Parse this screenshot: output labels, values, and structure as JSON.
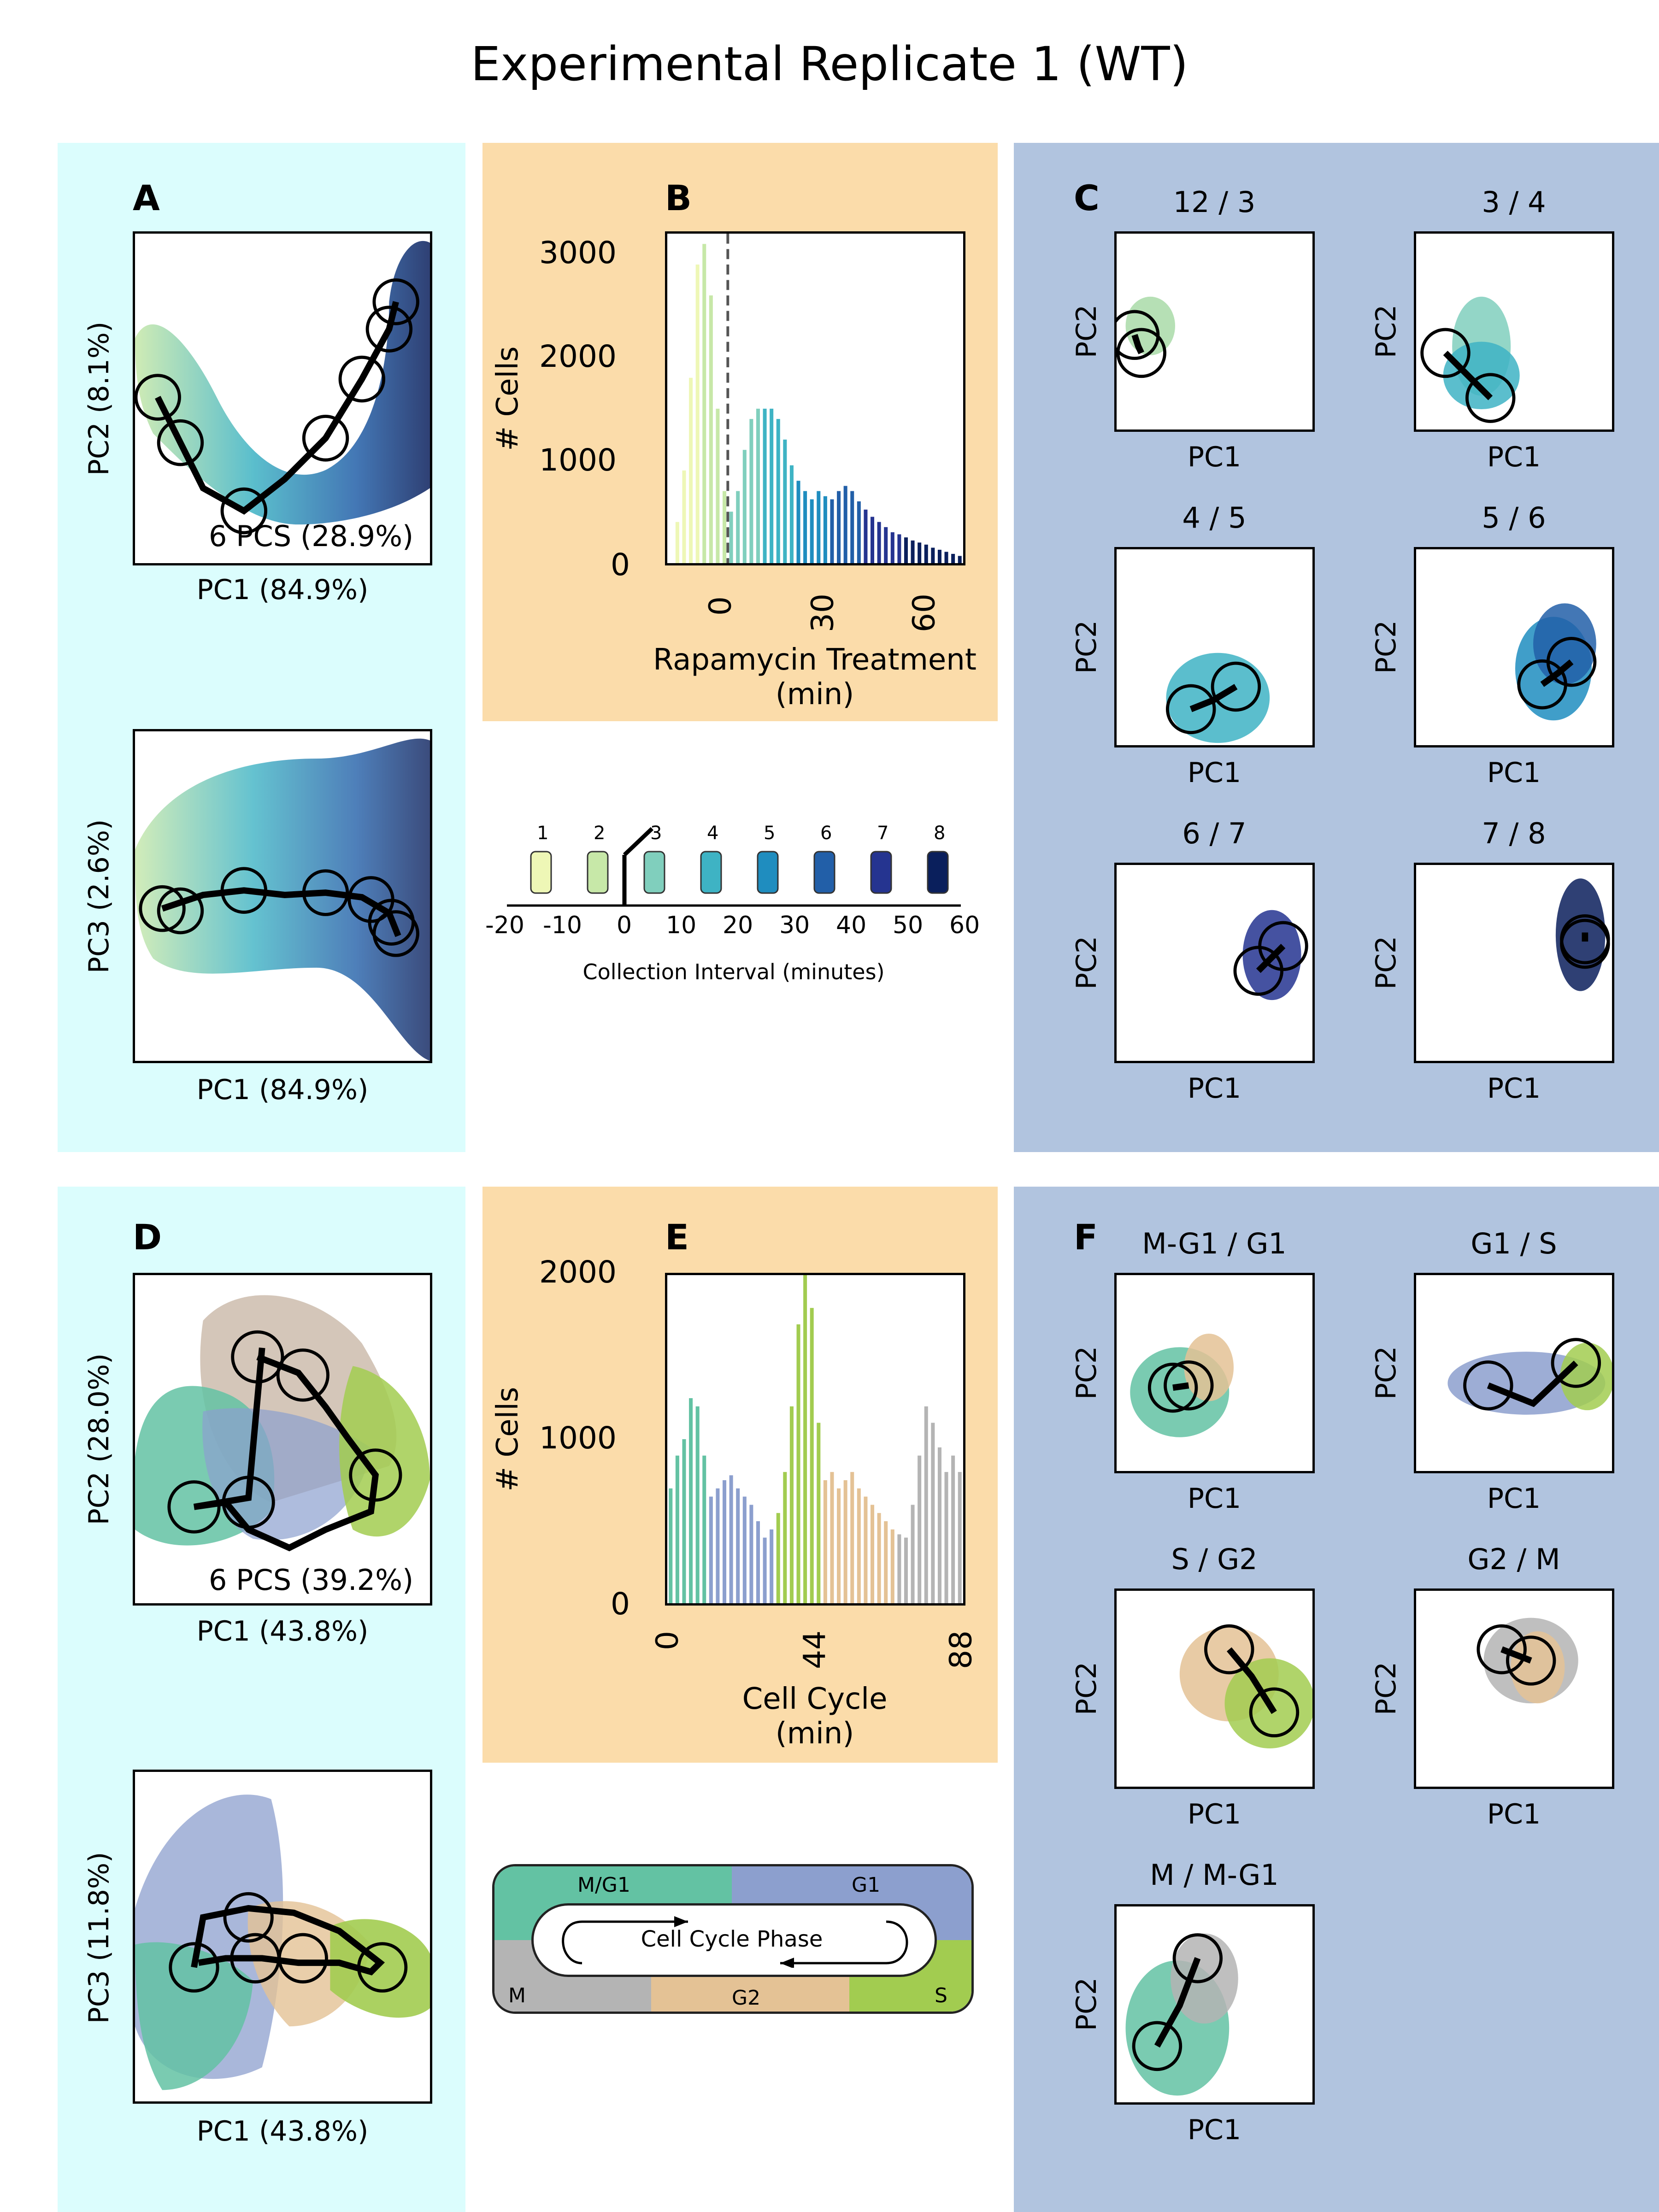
{
  "title": "Experimental Replicate 1 (WT)",
  "colors": {
    "panel_cyan": "#dbfdfd",
    "panel_orange": "#fbdcaa",
    "panel_blue": "#b1c4df",
    "time_palette": [
      "#eef7b6",
      "#c7e8a8",
      "#80cfbd",
      "#3eb3c4",
      "#1f8dbf",
      "#225fa8",
      "#253490",
      "#0a1f5c"
    ],
    "phase_colors": {
      "M/G1": "#63c2a3",
      "G1": "#8c9fce",
      "S": "#a2cc50",
      "G2": "#e4c295",
      "M": "#b4b4b4"
    }
  },
  "panels": {
    "A": {
      "letter": "A",
      "top": {
        "xlabel": "PC1 (84.9%)",
        "ylabel": "PC2 (8.1%)",
        "annotation": "6 PCS (28.9%)"
      },
      "bottom": {
        "xlabel": "PC1 (84.9%)",
        "ylabel": "PC3 (2.6%)"
      }
    },
    "B": {
      "letter": "B",
      "xlabel_line1": "Rapamycin Treatment",
      "xlabel_line2": "(min)",
      "ylabel": "# Cells",
      "yticks": [
        "3000",
        "2000",
        "1000",
        "0"
      ],
      "xticks": [
        "0",
        "30",
        "60"
      ]
    },
    "timeline": {
      "tube_labels": [
        "1",
        "2",
        "3",
        "4",
        "5",
        "6",
        "7",
        "8"
      ],
      "axis_ticks": [
        "-20",
        "-10",
        "0",
        "10",
        "20",
        "30",
        "40",
        "50",
        "60"
      ],
      "xlabel": "Collection Interval (minutes)"
    },
    "C": {
      "letter": "C",
      "subplots": [
        {
          "title": "12 / 3",
          "xlabel": "PC1",
          "ylabel": "PC2"
        },
        {
          "title": "3 / 4",
          "xlabel": "PC1",
          "ylabel": "PC2"
        },
        {
          "title": "4 / 5",
          "xlabel": "PC1",
          "ylabel": "PC2"
        },
        {
          "title": "5 / 6",
          "xlabel": "PC1",
          "ylabel": "PC2"
        },
        {
          "title": "6 / 7",
          "xlabel": "PC1",
          "ylabel": "PC2"
        },
        {
          "title": "7 / 8",
          "xlabel": "PC1",
          "ylabel": "PC2"
        }
      ]
    },
    "D": {
      "letter": "D",
      "top": {
        "xlabel": "PC1 (43.8%)",
        "ylabel": "PC2 (28.0%)",
        "annotation": "6 PCS (39.2%)"
      },
      "bottom": {
        "xlabel": "PC1 (43.8%)",
        "ylabel": "PC3 (11.8%)"
      }
    },
    "E": {
      "letter": "E",
      "xlabel_line1": "Cell Cycle",
      "xlabel_line2": "(min)",
      "ylabel": "# Cells",
      "yticks": [
        "2000",
        "1000",
        "0"
      ],
      "xticks": [
        "0",
        "44",
        "88"
      ]
    },
    "phase_legend": {
      "center_label": "Cell Cycle Phase",
      "phases": [
        "M/G1",
        "G1",
        "M",
        "G2",
        "S"
      ]
    },
    "F": {
      "letter": "F",
      "subplots": [
        {
          "title": "M-G1 / G1",
          "xlabel": "PC1",
          "ylabel": "PC2"
        },
        {
          "title": "G1 / S",
          "xlabel": "PC1",
          "ylabel": "PC2"
        },
        {
          "title": "S / G2",
          "xlabel": "PC1",
          "ylabel": "PC2"
        },
        {
          "title": "G2 / M",
          "xlabel": "PC1",
          "ylabel": "PC2"
        },
        {
          "title": "M / M-G1",
          "xlabel": "PC1",
          "ylabel": "PC2"
        }
      ]
    }
  },
  "chart_data": [
    {
      "type": "bar",
      "panel": "B",
      "title": "",
      "xlabel": "Rapamycin Treatment (min)",
      "ylabel": "# Cells",
      "xlim": [
        -18,
        70
      ],
      "ylim": [
        0,
        3200
      ],
      "vline_x": 0,
      "x": [
        -15,
        -13,
        -11,
        -9,
        -7,
        -5,
        -3,
        -1,
        1,
        3,
        5,
        7,
        9,
        11,
        13,
        15,
        17,
        19,
        21,
        23,
        25,
        27,
        29,
        31,
        33,
        35,
        37,
        39,
        41,
        43,
        45,
        47,
        49,
        51,
        53,
        55,
        57,
        59,
        61,
        63,
        65,
        67,
        69
      ],
      "values": [
        400,
        900,
        1800,
        2900,
        3100,
        2600,
        1500,
        700,
        500,
        700,
        1100,
        1400,
        1500,
        1500,
        1500,
        1400,
        1200,
        950,
        800,
        700,
        620,
        700,
        650,
        620,
        700,
        750,
        700,
        600,
        520,
        450,
        400,
        350,
        300,
        280,
        250,
        220,
        200,
        180,
        150,
        130,
        110,
        90,
        70
      ]
    },
    {
      "type": "bar",
      "panel": "E",
      "title": "",
      "xlabel": "Cell Cycle (min)",
      "ylabel": "# Cells",
      "xlim": [
        0,
        88
      ],
      "ylim": [
        0,
        2000
      ],
      "x": [
        1,
        3,
        5,
        7,
        9,
        11,
        13,
        15,
        17,
        19,
        21,
        23,
        25,
        27,
        29,
        31,
        33,
        35,
        37,
        39,
        41,
        43,
        45,
        47,
        49,
        51,
        53,
        55,
        57,
        59,
        61,
        63,
        65,
        67,
        69,
        71,
        73,
        75,
        77,
        79,
        81,
        83,
        85,
        87
      ],
      "values": [
        700,
        900,
        1000,
        1250,
        1200,
        900,
        650,
        700,
        750,
        780,
        700,
        650,
        600,
        500,
        400,
        450,
        550,
        800,
        1200,
        1700,
        2000,
        1800,
        1100,
        750,
        800,
        700,
        750,
        800,
        700,
        650,
        600,
        550,
        500,
        450,
        420,
        400,
        600,
        900,
        1200,
        1100,
        950,
        800,
        900,
        800
      ]
    },
    {
      "type": "scatter",
      "panel": "A-top",
      "title": "",
      "xlabel": "PC1 (84.9%)",
      "ylabel": "PC2 (8.1%)"
    },
    {
      "type": "scatter",
      "panel": "A-bottom",
      "title": "",
      "xlabel": "PC1 (84.9%)",
      "ylabel": "PC3 (2.6%)"
    },
    {
      "type": "scatter",
      "panel": "D-top",
      "title": "",
      "xlabel": "PC1 (43.8%)",
      "ylabel": "PC2 (28.0%)"
    },
    {
      "type": "scatter",
      "panel": "D-bottom",
      "title": "",
      "xlabel": "PC1 (43.8%)",
      "ylabel": "PC3 (11.8%)"
    }
  ]
}
